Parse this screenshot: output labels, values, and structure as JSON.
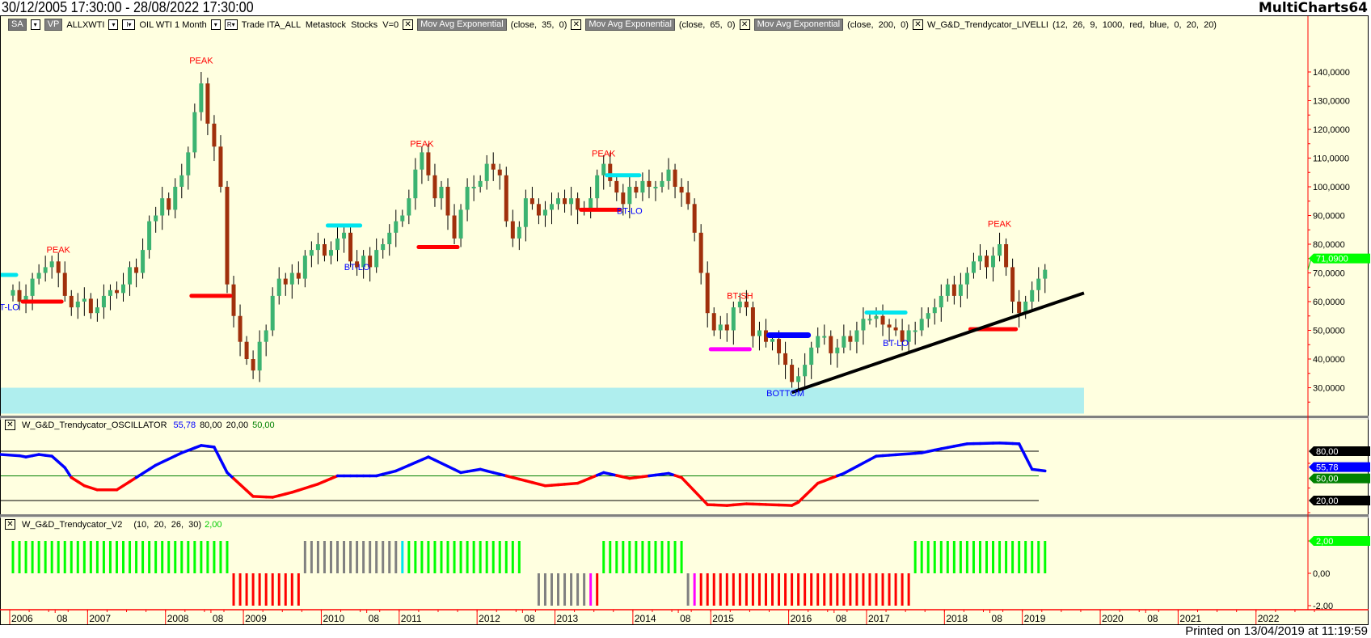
{
  "header": {
    "title": "30/12/2005 17:30:00 - 28/08/2022 17:30:00",
    "brand": "MultiCharts64",
    "printed": "Printed on 13/04/2019 at 11:19:59"
  },
  "toolbar": {
    "sa": "SA",
    "vp": "VP",
    "symbol": "ALLXWTI",
    "interval_box": "I▾",
    "instrument": "OIL WTI 1 Month",
    "r_box": "R▾",
    "info": "Trade ITA_ALL  Metastock  Stocks  V=0",
    "studies": [
      {
        "name": "Mov Avg Exponential",
        "params": "(close,  35,  0)"
      },
      {
        "name": "Mov Avg Exponential",
        "params": "(close,  65,  0)"
      },
      {
        "name": "Mov Avg Exponential",
        "params": "(close,  200,  0)"
      },
      {
        "name": "W_G&D_Trendycator_LIVELLI",
        "params": "(12,  26,  9,  1000,  red,  blue,  0,  20,  20)"
      }
    ]
  },
  "oscillator_header": {
    "name": "W_G&D_Trendycator_OSCILLATOR",
    "value": "55,78",
    "upper": "80,00",
    "lower": "20,00",
    "mid": "50,00"
  },
  "histogram_header": {
    "name": "W_G&D_Trendycator_V2",
    "params": "(10,  20,  26,  30)",
    "value": "2,00"
  },
  "colors": {
    "background": "#FFFFE0",
    "up": "#3CB371",
    "down": "#A0300C",
    "axis": "#FF0000",
    "band": "#AFEEEE",
    "osc_up": "#0000FF",
    "osc_down": "#FF0000"
  },
  "chart_data": [
    {
      "type": "candlestick",
      "ylim": [
        20,
        150
      ],
      "price_ticks": [
        "140,0000",
        "130,0000",
        "120,0000",
        "110,0000",
        "100,0000",
        "90,0000",
        "80,0000",
        "70,0000",
        "60,0000",
        "50,0000",
        "40,0000",
        "30,0000"
      ],
      "last_price": "71,0900",
      "last_price_value": 71.09,
      "closes": {
        "2006": [
          64,
          60,
          62,
          68,
          70,
          72,
          74,
          70,
          62,
          58,
          60,
          61
        ],
        "2007": [
          56,
          58,
          62,
          64,
          63,
          66,
          72,
          70,
          78,
          88,
          90,
          96
        ],
        "2008": [
          92,
          100,
          104,
          112,
          126,
          136,
          122,
          114,
          100,
          66,
          55,
          46
        ],
        "2009": [
          40,
          36,
          46,
          50,
          62,
          68,
          66,
          70,
          68,
          76,
          78,
          80
        ],
        "2010": [
          76,
          78,
          82,
          84,
          74,
          72,
          76,
          72,
          78,
          80,
          84,
          88
        ],
        "2011": [
          90,
          96,
          106,
          112,
          104,
          96,
          100,
          90,
          82,
          92,
          100,
          100
        ],
        "2012": [
          102,
          108,
          106,
          104,
          88,
          82,
          86,
          96,
          94,
          90,
          92,
          94
        ],
        "2013": [
          96,
          94,
          96,
          92,
          92,
          96,
          104,
          108,
          102,
          98,
          94,
          100
        ],
        "2014": [
          98,
          102,
          100,
          100,
          102,
          106,
          100,
          98,
          94,
          84,
          70,
          56
        ],
        "2015": [
          50,
          52,
          50,
          58,
          60,
          58,
          48,
          50,
          46,
          47,
          42,
          38
        ],
        "2016": [
          32,
          34,
          38,
          44,
          48,
          48,
          42,
          44,
          48,
          46,
          50,
          54
        ],
        "2017": [
          54,
          55,
          52,
          51,
          50,
          46,
          50,
          50,
          54,
          56,
          58,
          62
        ],
        "2018": [
          66,
          62,
          66,
          70,
          74,
          76,
          72,
          76,
          80,
          72,
          60,
          56
        ],
        "2019": [
          60,
          64,
          68,
          71.09
        ]
      },
      "annotations": [
        {
          "text": "PEAK",
          "color": "#FF0000",
          "date": "2006-08",
          "price": 77
        },
        {
          "text": "PEAK",
          "color": "#FF0000",
          "date": "2008-06",
          "price": 143
        },
        {
          "text": "PEAK",
          "color": "#FF0000",
          "date": "2011-04",
          "price": 114
        },
        {
          "text": "PEAK",
          "color": "#FF0000",
          "date": "2013-08",
          "price": 110.5
        },
        {
          "text": "PEAK",
          "color": "#FF0000",
          "date": "2018-09",
          "price": 86
        },
        {
          "text": "BT-LO",
          "color": "#0000FF",
          "date": "2005-12",
          "price": 57
        },
        {
          "text": "BT-LO",
          "color": "#0000FF",
          "date": "2010-06",
          "price": 71
        },
        {
          "text": "BT-LO",
          "color": "#0000FF",
          "date": "2013-12",
          "price": 90.5
        },
        {
          "text": "BT-LO",
          "color": "#0000FF",
          "date": "2017-05",
          "price": 44.5
        },
        {
          "text": "BT-SH",
          "color": "#FF0000",
          "date": "2015-05",
          "price": 61
        },
        {
          "text": "BOTTOM",
          "color": "#0000FF",
          "date": "2015-12",
          "price": 27
        }
      ],
      "levels": [
        {
          "color": "#00E5EE",
          "from": "2005-11",
          "to": "2006-01",
          "price": 69.3
        },
        {
          "color": "#FF0000",
          "from": "2006-03",
          "to": "2006-08",
          "price": 60
        },
        {
          "color": "#FF0000",
          "from": "2008-05",
          "to": "2008-10",
          "price": 62
        },
        {
          "color": "#00E5EE",
          "from": "2010-02",
          "to": "2010-06",
          "price": 86.5
        },
        {
          "color": "#FF0000",
          "from": "2011-04",
          "to": "2011-09",
          "price": 79
        },
        {
          "color": "#FF0000",
          "from": "2013-05",
          "to": "2013-10",
          "price": 92
        },
        {
          "color": "#00E5EE",
          "from": "2013-09",
          "to": "2014-01",
          "price": 104
        },
        {
          "color": "#FF00FF",
          "from": "2015-01",
          "to": "2015-06",
          "price": 43.4
        },
        {
          "color": "#0000FF",
          "from": "2015-10",
          "to": "2016-03",
          "price": 48.3
        },
        {
          "color": "#00E5EE",
          "from": "2017-01",
          "to": "2017-06",
          "price": 56.2
        },
        {
          "color": "#FF0000",
          "from": "2018-05",
          "to": "2018-11",
          "price": 50.4
        }
      ],
      "trendline": {
        "from": [
          "2016-01",
          28.4
        ],
        "to": [
          "2019-10",
          63
        ]
      },
      "support_band": {
        "to": "2019-10",
        "low": 21,
        "high": 30
      }
    },
    {
      "type": "line",
      "name": "W_G&D_Trendycator_OSCILLATOR",
      "ylim": [
        8,
        96
      ],
      "levels": [
        80,
        50,
        20
      ],
      "axis_labels": [
        {
          "text": "80,00",
          "value": 80,
          "color": "#000000"
        },
        {
          "text": "55,78",
          "value": 55.78,
          "color": "#0000FF"
        },
        {
          "text": "50,00",
          "value": 50,
          "color": "#008000"
        },
        {
          "text": "20,00",
          "value": 20,
          "color": "#000000"
        }
      ],
      "points": [
        [
          "2006-01",
          76
        ],
        [
          "2006-03",
          73
        ],
        [
          "2006-05",
          76
        ],
        [
          "2006-07",
          74
        ],
        [
          "2006-09",
          60
        ],
        [
          "2006-10",
          48
        ],
        [
          "2006-12",
          38
        ],
        [
          "2007-02",
          33
        ],
        [
          "2007-05",
          33
        ],
        [
          "2007-08",
          48
        ],
        [
          "2007-11",
          63
        ],
        [
          "2008-03",
          78
        ],
        [
          "2008-06",
          87
        ],
        [
          "2008-08",
          85
        ],
        [
          "2008-10",
          54
        ],
        [
          "2009-02",
          25
        ],
        [
          "2009-05",
          24
        ],
        [
          "2009-08",
          30
        ],
        [
          "2009-12",
          40
        ],
        [
          "2010-03",
          50
        ],
        [
          "2010-09",
          50
        ],
        [
          "2010-12",
          56
        ],
        [
          "2011-05",
          73
        ],
        [
          "2011-10",
          54
        ],
        [
          "2012-01",
          58
        ],
        [
          "2012-05",
          50
        ],
        [
          "2012-11",
          38
        ],
        [
          "2013-04",
          41
        ],
        [
          "2013-08",
          54
        ],
        [
          "2013-12",
          47
        ],
        [
          "2014-06",
          53
        ],
        [
          "2014-08",
          48
        ],
        [
          "2014-12",
          15
        ],
        [
          "2015-03",
          14
        ],
        [
          "2015-06",
          16
        ],
        [
          "2016-01",
          14
        ],
        [
          "2016-02",
          18
        ],
        [
          "2016-05",
          41
        ],
        [
          "2016-09",
          53
        ],
        [
          "2017-02",
          74
        ],
        [
          "2017-09",
          78
        ],
        [
          "2017-12",
          83
        ],
        [
          "2018-04",
          89
        ],
        [
          "2018-09",
          90
        ],
        [
          "2018-12",
          89
        ],
        [
          "2019-02",
          58
        ],
        [
          "2019-04",
          56
        ]
      ]
    },
    {
      "type": "bar",
      "name": "W_G&D_Trendycator_V2",
      "ylim": [
        -2,
        2
      ],
      "axis_labels": [
        {
          "text": "2,00",
          "value": 2
        },
        {
          "text": "0,00",
          "value": 0
        },
        {
          "text": "-2,00",
          "value": -2
        }
      ],
      "legend_codes": {
        "G": [
          "#00FF00",
          2
        ],
        "P": [
          "#808080",
          2
        ],
        "C": [
          "#00E5EE",
          2
        ],
        "R": [
          "#FF0000",
          -2
        ],
        "N": [
          "#808080",
          -2
        ],
        "M": [
          "#FF00FF",
          -2
        ]
      },
      "states": "GGGGGGGGGGGGGGGGGGGGGGGGGGGGGGGGGGRRRRRRRRRRRPPPPPPPPPPPPPPPCGGGGGGGGGGGGGGGGGG__NNNNNNNNMRGGGGGGGGGGGGGNMRRRRRRRRRRRRRRRRRRRRRRRRRRRRRRRRRGGGGGGGGGGGGGGGGGGGGG"
    },
    {
      "type": "time_axis",
      "labels": [
        [
          "2006",
          "2006-01"
        ],
        [
          "08",
          "2006-08"
        ],
        [
          "2007",
          "2007-01"
        ],
        [
          "2008",
          "2008-01"
        ],
        [
          "08",
          "2008-08"
        ],
        [
          "2009",
          "2009-01"
        ],
        [
          "2010",
          "2010-01"
        ],
        [
          "08",
          "2010-08"
        ],
        [
          "2011",
          "2011-01"
        ],
        [
          "2012",
          "2012-01"
        ],
        [
          "08",
          "2012-08"
        ],
        [
          "2013",
          "2013-01"
        ],
        [
          "2014",
          "2014-01"
        ],
        [
          "08",
          "2014-08"
        ],
        [
          "2015",
          "2015-01"
        ],
        [
          "2016",
          "2016-01"
        ],
        [
          "08",
          "2016-08"
        ],
        [
          "2017",
          "2017-01"
        ],
        [
          "2018",
          "2018-01"
        ],
        [
          "08",
          "2018-08"
        ],
        [
          "2019",
          "2019-01"
        ],
        [
          "2020",
          "2020-01"
        ],
        [
          "08",
          "2020-08"
        ],
        [
          "2021",
          "2021-01"
        ],
        [
          "2022",
          "2022-01"
        ]
      ]
    }
  ]
}
